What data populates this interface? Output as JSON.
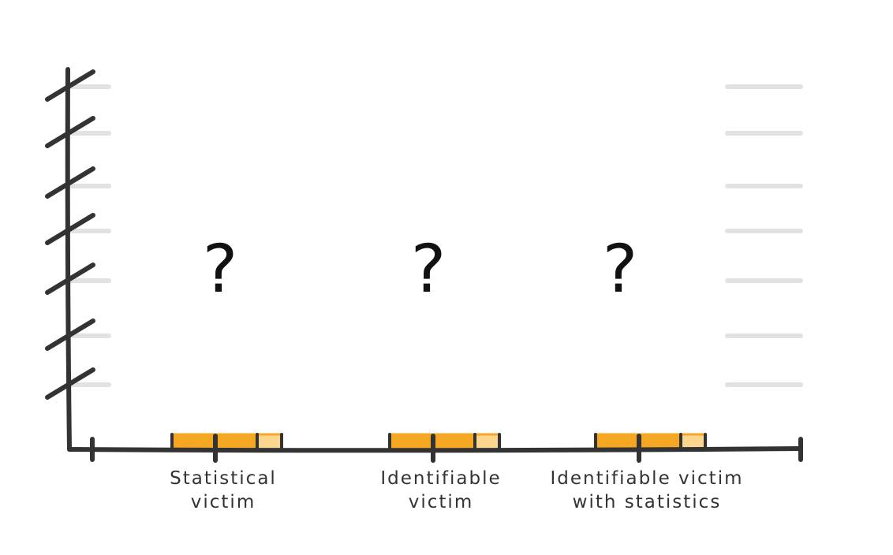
{
  "chart_data": {
    "type": "bar",
    "title": "",
    "xlabel": "",
    "ylabel": "",
    "categories": [
      {
        "label_lines": [
          "Statistical",
          "victim"
        ],
        "value_label": "?"
      },
      {
        "label_lines": [
          "Identifiable",
          "victim"
        ],
        "value_label": "?"
      },
      {
        "label_lines": [
          "Identifiable victim",
          "with statistics"
        ],
        "value_label": "?"
      }
    ],
    "grid": "horizontal",
    "legend": "none",
    "colors": {
      "axis": "#333333",
      "grid": "#e2e2e2",
      "bar_base": "#f5a623",
      "bar_base_light": "#fcd58f"
    }
  }
}
